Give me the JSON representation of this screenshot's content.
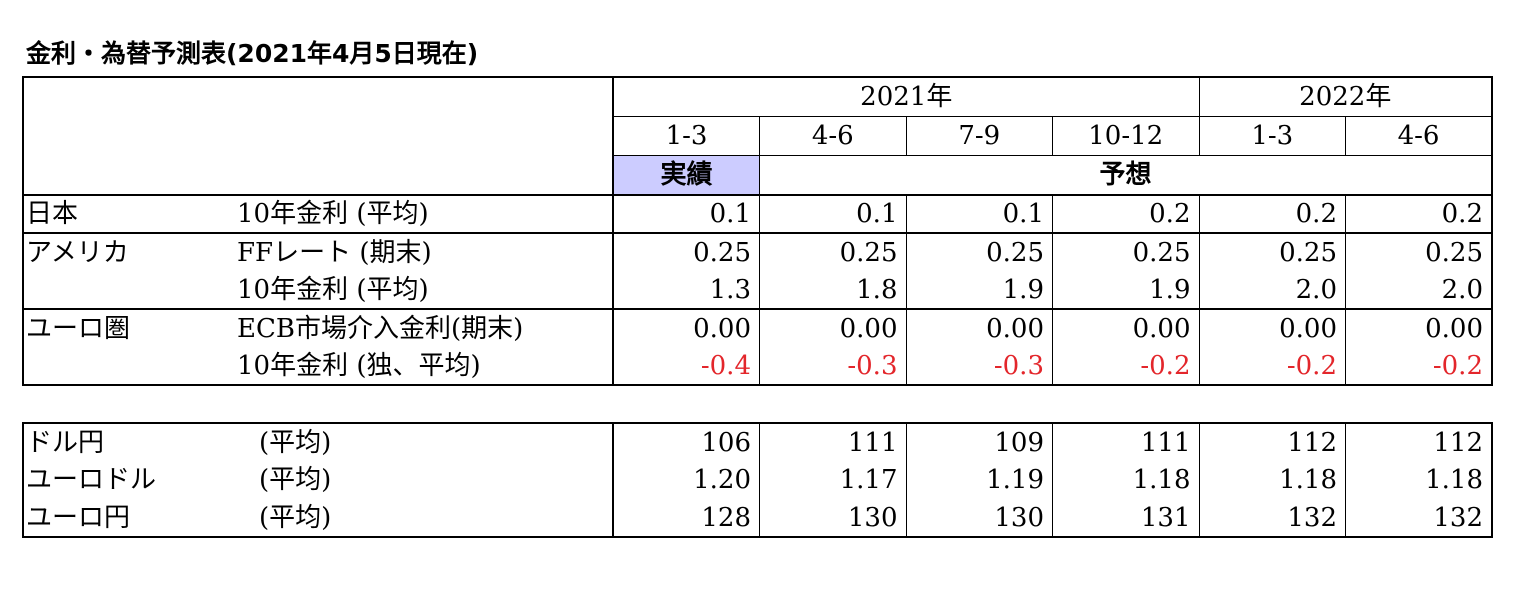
{
  "title": "金利・為替予測表(2021年4月5日現在)",
  "header": {
    "years": [
      "2021年",
      "2022年"
    ],
    "quarters": [
      "1-3",
      "4-6",
      "7-9",
      "10-12",
      "1-3",
      "4-6"
    ],
    "actual_label": "実績",
    "forecast_label": "予想"
  },
  "rates": [
    {
      "region": "日本",
      "item": "10年金利 (平均)",
      "values": [
        "0.1",
        "0.1",
        "0.1",
        "0.2",
        "0.2",
        "0.2"
      ]
    },
    {
      "region": "アメリカ",
      "item": "FFレート (期末)",
      "values": [
        "0.25",
        "0.25",
        "0.25",
        "0.25",
        "0.25",
        "0.25"
      ]
    },
    {
      "region": "",
      "item": "10年金利 (平均)",
      "values": [
        "1.3",
        "1.8",
        "1.9",
        "1.9",
        "2.0",
        "2.0"
      ]
    },
    {
      "region": "ユーロ圏",
      "item": "ECB市場介入金利(期末)",
      "values": [
        "0.00",
        "0.00",
        "0.00",
        "0.00",
        "0.00",
        "0.00"
      ]
    },
    {
      "region": "",
      "item": "10年金利 (独、平均)",
      "values": [
        "-0.4",
        "-0.3",
        "-0.3",
        "-0.2",
        "-0.2",
        "-0.2"
      ]
    }
  ],
  "fx": [
    {
      "pair": "ドル円",
      "item": "(平均)",
      "values": [
        "106",
        "111",
        "109",
        "111",
        "112",
        "112"
      ]
    },
    {
      "pair": "ユーロドル",
      "item": "(平均)",
      "values": [
        "1.20",
        "1.17",
        "1.19",
        "1.18",
        "1.18",
        "1.18"
      ]
    },
    {
      "pair": "ユーロ円",
      "item": "(平均)",
      "values": [
        "128",
        "130",
        "130",
        "131",
        "132",
        "132"
      ]
    }
  ],
  "colors": {
    "negative": "#e3262b",
    "actual_highlight": "#ccccff"
  }
}
